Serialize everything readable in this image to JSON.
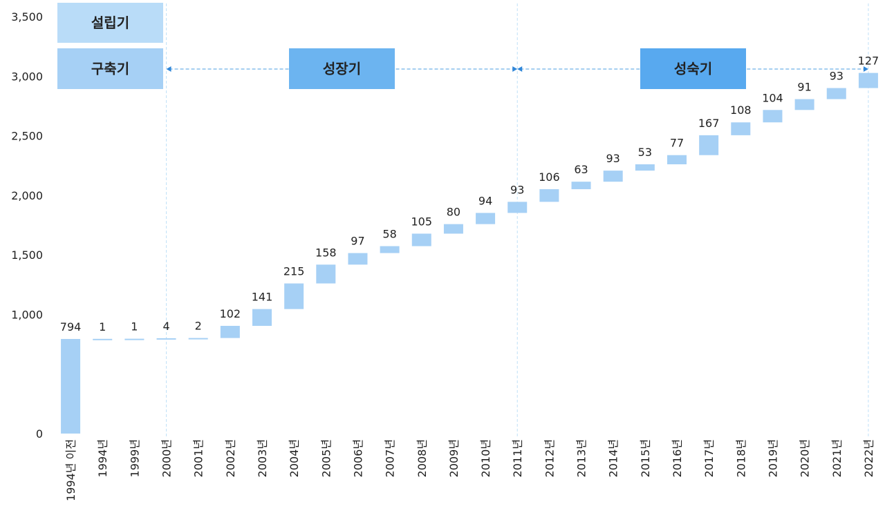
{
  "chart_data": {
    "type": "waterfall",
    "categories": [
      "1994년 이전",
      "1994년",
      "1999년",
      "2000년",
      "2001년",
      "2002년",
      "2003년",
      "2004년",
      "2005년",
      "2006년",
      "2007년",
      "2008년",
      "2009년",
      "2010년",
      "2011년",
      "2012년",
      "2013년",
      "2014년",
      "2015년",
      "2016년",
      "2017년",
      "2018년",
      "2019년",
      "2020년",
      "2021년",
      "2022년"
    ],
    "values": [
      794,
      1,
      1,
      4,
      2,
      102,
      141,
      215,
      158,
      97,
      58,
      105,
      80,
      94,
      93,
      106,
      63,
      93,
      53,
      77,
      167,
      108,
      104,
      91,
      93,
      127
    ],
    "color": "#a6d0f5",
    "ylim": [
      0,
      3500
    ],
    "yticks": [
      0,
      {
        "value": 1000,
        "label": "1,000"
      },
      {
        "value": 1500,
        "label": "1,500"
      },
      {
        "value": 2000,
        "label": "2,000"
      },
      {
        "value": 2500,
        "label": "2,500"
      },
      {
        "value": 3000,
        "label": "3,000"
      },
      {
        "value": 3500,
        "label": "3,500"
      }
    ],
    "phases": [
      "설립기",
      "구축기",
      "성장기",
      "성숙기"
    ]
  }
}
